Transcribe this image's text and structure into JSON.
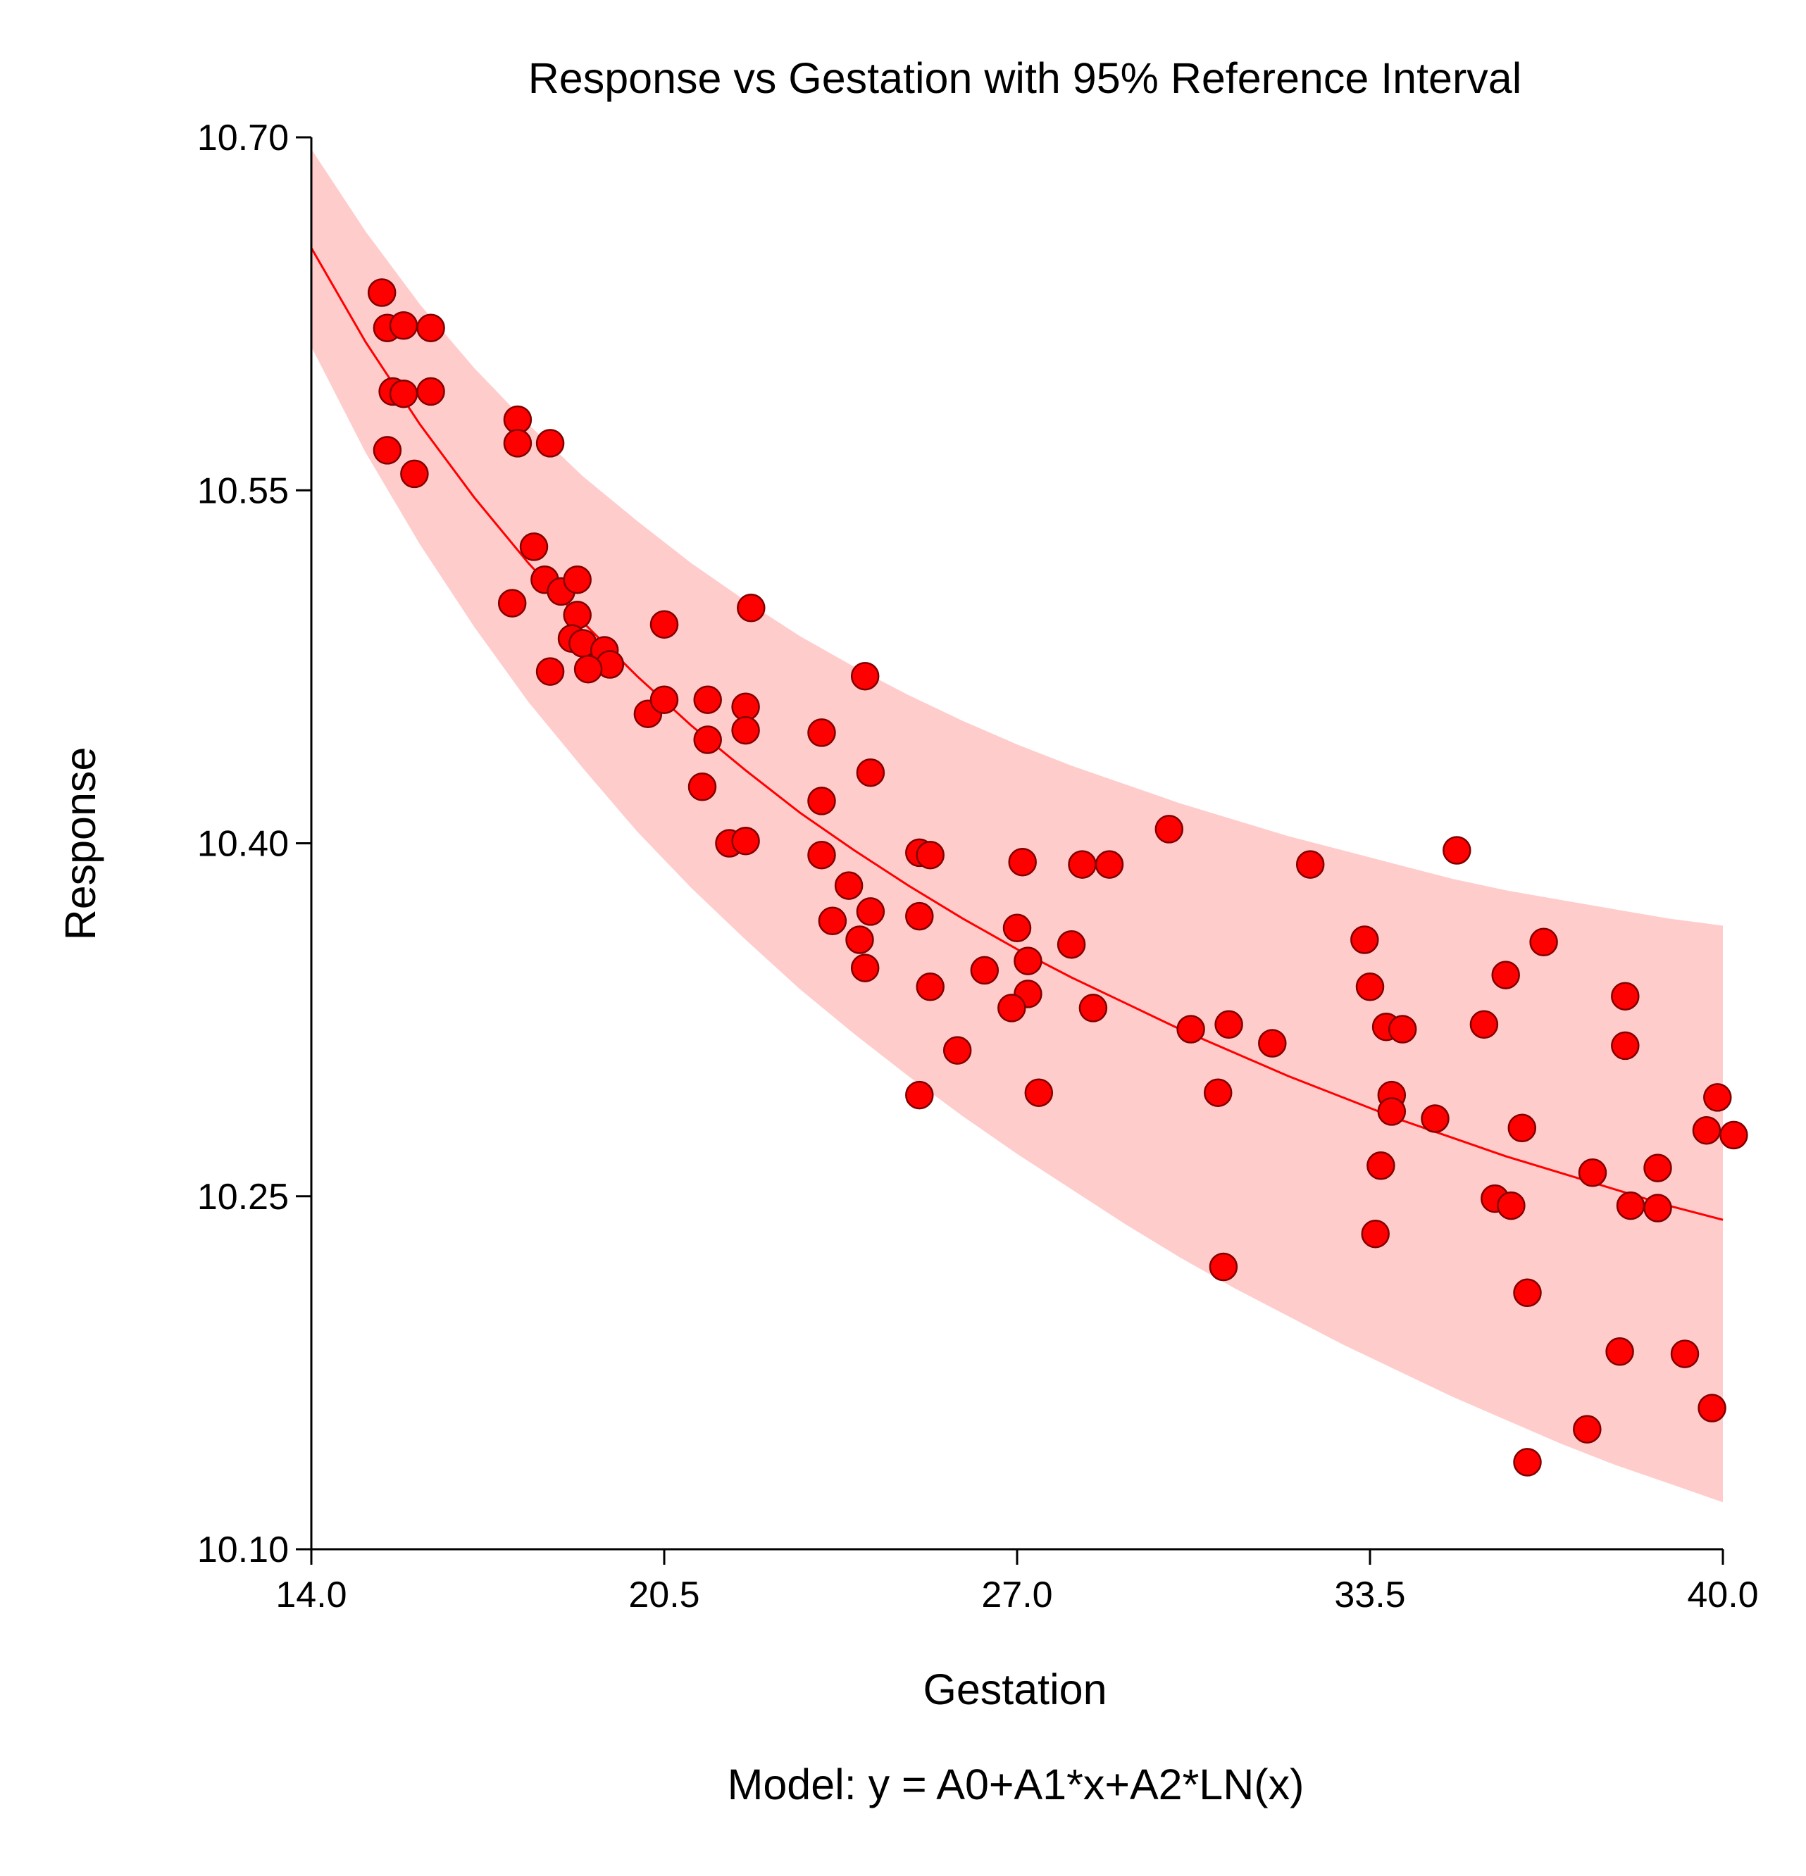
{
  "chart_data": {
    "type": "scatter",
    "title": "Response vs Gestation with 95% Reference Interval",
    "xlabel": "Gestation",
    "ylabel": "Response",
    "footnote": "Model:  y = A0+A1*x+A2*LN(x)",
    "xlim": [
      14.0,
      40.0
    ],
    "ylim": [
      10.1,
      10.7
    ],
    "x_ticks": [
      "14.0",
      "20.5",
      "27.0",
      "33.5",
      "40.0"
    ],
    "y_ticks": [
      "10.10",
      "10.25",
      "10.40",
      "10.55",
      "10.70"
    ],
    "grid": false,
    "colors": {
      "points": "#ff0000",
      "point_edge": "#800000",
      "fit_line": "#ff0000",
      "band": "#ffcccc"
    },
    "fit_line": {
      "x": [
        14,
        15,
        16,
        17,
        18,
        19,
        20,
        21,
        22,
        23,
        24,
        25,
        26,
        27,
        28,
        29,
        30,
        31,
        32,
        33,
        34,
        35,
        36,
        37,
        38,
        39,
        40
      ],
      "y": [
        10.653,
        10.613,
        10.578,
        10.547,
        10.519,
        10.494,
        10.471,
        10.45,
        10.431,
        10.413,
        10.397,
        10.382,
        10.368,
        10.355,
        10.343,
        10.332,
        10.321,
        10.311,
        10.301,
        10.292,
        10.283,
        10.275,
        10.267,
        10.26,
        10.253,
        10.246,
        10.24
      ]
    },
    "reference_interval": {
      "x": [
        14,
        15,
        16,
        17,
        18,
        19,
        20,
        21,
        22,
        23,
        24,
        25,
        26,
        27,
        28,
        29,
        30,
        31,
        32,
        33,
        34,
        35,
        36,
        37,
        38,
        39,
        40
      ],
      "lower": [
        10.611,
        10.566,
        10.527,
        10.492,
        10.46,
        10.432,
        10.405,
        10.381,
        10.359,
        10.338,
        10.319,
        10.301,
        10.284,
        10.268,
        10.253,
        10.238,
        10.224,
        10.211,
        10.199,
        10.187,
        10.176,
        10.165,
        10.155,
        10.145,
        10.136,
        10.128,
        10.12
      ],
      "upper": [
        10.695,
        10.66,
        10.629,
        10.602,
        10.578,
        10.556,
        10.537,
        10.519,
        10.503,
        10.488,
        10.475,
        10.463,
        10.452,
        10.442,
        10.433,
        10.425,
        10.417,
        10.41,
        10.403,
        10.397,
        10.391,
        10.385,
        10.38,
        10.376,
        10.372,
        10.368,
        10.365
      ]
    },
    "series": [
      {
        "points": [
          [
            15.3,
            10.634
          ],
          [
            15.4,
            10.619
          ],
          [
            15.7,
            10.62
          ],
          [
            16.2,
            10.619
          ],
          [
            15.5,
            10.592
          ],
          [
            15.7,
            10.591
          ],
          [
            16.2,
            10.592
          ],
          [
            15.4,
            10.567
          ],
          [
            15.9,
            10.557
          ],
          [
            17.8,
            10.58
          ],
          [
            17.8,
            10.57
          ],
          [
            18.4,
            10.57
          ],
          [
            18.1,
            10.526
          ],
          [
            18.3,
            10.512
          ],
          [
            18.6,
            10.507
          ],
          [
            18.9,
            10.512
          ],
          [
            17.7,
            10.502
          ],
          [
            18.9,
            10.497
          ],
          [
            18.8,
            10.487
          ],
          [
            19.0,
            10.485
          ],
          [
            19.4,
            10.482
          ],
          [
            19.5,
            10.476
          ],
          [
            18.4,
            10.473
          ],
          [
            19.1,
            10.474
          ],
          [
            20.5,
            10.493
          ],
          [
            22.1,
            10.5
          ],
          [
            20.2,
            10.455
          ],
          [
            20.5,
            10.461
          ],
          [
            21.3,
            10.461
          ],
          [
            22.0,
            10.458
          ],
          [
            22.0,
            10.448
          ],
          [
            21.3,
            10.444
          ],
          [
            21.2,
            10.424
          ],
          [
            21.7,
            10.4
          ],
          [
            22.0,
            10.401
          ],
          [
            23.4,
            10.447
          ],
          [
            23.4,
            10.418
          ],
          [
            23.4,
            10.395
          ],
          [
            23.9,
            10.382
          ],
          [
            24.2,
            10.471
          ],
          [
            24.3,
            10.43
          ],
          [
            24.3,
            10.371
          ],
          [
            23.6,
            10.367
          ],
          [
            24.1,
            10.359
          ],
          [
            24.2,
            10.347
          ],
          [
            25.2,
            10.396
          ],
          [
            25.4,
            10.395
          ],
          [
            25.2,
            10.369
          ],
          [
            25.4,
            10.339
          ],
          [
            25.2,
            10.293
          ],
          [
            25.9,
            10.312
          ],
          [
            26.4,
            10.346
          ],
          [
            27.1,
            10.392
          ],
          [
            27.2,
            10.35
          ],
          [
            27.2,
            10.336
          ],
          [
            27.0,
            10.364
          ],
          [
            26.9,
            10.33
          ],
          [
            27.4,
            10.294
          ],
          [
            28.0,
            10.357
          ],
          [
            28.2,
            10.391
          ],
          [
            28.4,
            10.33
          ],
          [
            28.7,
            10.391
          ],
          [
            29.8,
            10.406
          ],
          [
            30.2,
            10.321
          ],
          [
            30.7,
            10.294
          ],
          [
            30.9,
            10.323
          ],
          [
            31.7,
            10.315
          ],
          [
            32.4,
            10.391
          ],
          [
            30.8,
            10.22
          ],
          [
            33.4,
            10.359
          ],
          [
            33.5,
            10.339
          ],
          [
            33.8,
            10.322
          ],
          [
            34.1,
            10.321
          ],
          [
            33.9,
            10.293
          ],
          [
            33.9,
            10.286
          ],
          [
            34.7,
            10.283
          ],
          [
            33.7,
            10.263
          ],
          [
            33.6,
            10.234
          ],
          [
            35.1,
            10.397
          ],
          [
            35.6,
            10.323
          ],
          [
            36.0,
            10.344
          ],
          [
            36.7,
            10.358
          ],
          [
            35.8,
            10.249
          ],
          [
            36.1,
            10.246
          ],
          [
            36.3,
            10.279
          ],
          [
            36.4,
            10.209
          ],
          [
            36.4,
            10.137
          ],
          [
            37.6,
            10.26
          ],
          [
            37.5,
            10.151
          ],
          [
            38.2,
            10.335
          ],
          [
            38.2,
            10.314
          ],
          [
            38.3,
            10.246
          ],
          [
            38.1,
            10.184
          ],
          [
            38.8,
            10.262
          ],
          [
            38.8,
            10.245
          ],
          [
            39.3,
            10.183
          ],
          [
            39.7,
            10.278
          ],
          [
            39.9,
            10.292
          ],
          [
            40.2,
            10.276
          ],
          [
            39.8,
            10.16
          ]
        ]
      }
    ]
  }
}
